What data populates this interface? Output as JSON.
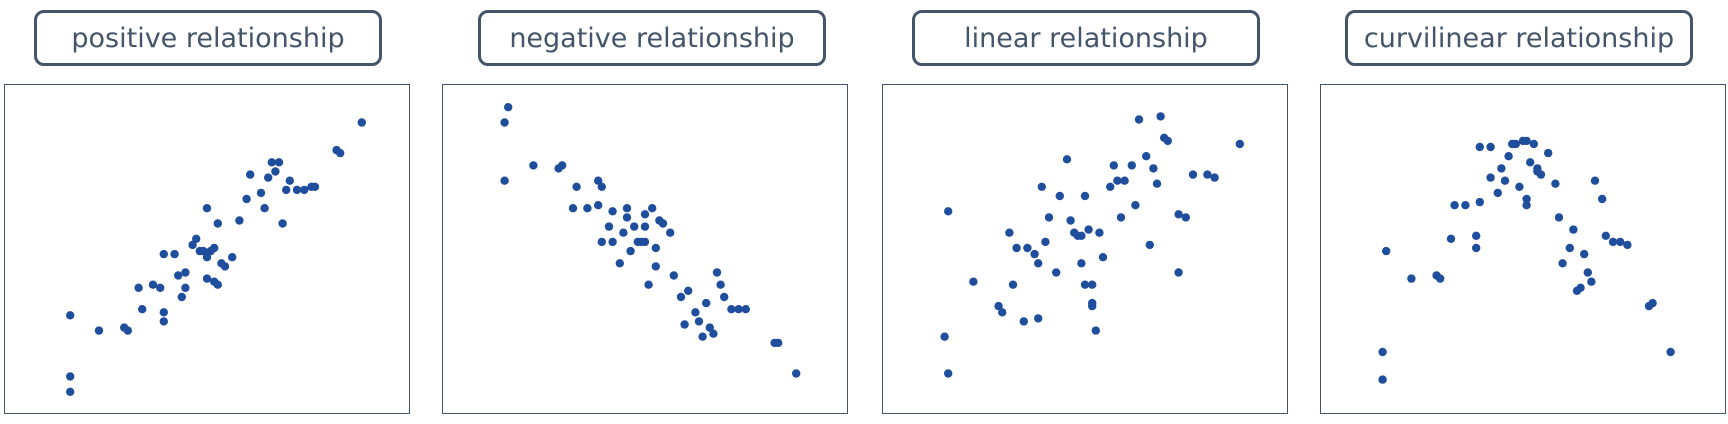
{
  "colors": {
    "accent": "#44546a",
    "point": "#1f4e9c"
  },
  "chart_data": [
    {
      "type": "scatter",
      "title": "positive relationship",
      "xlim": [
        0,
        100
      ],
      "ylim": [
        0,
        100
      ],
      "points": [
        [
          12,
          3
        ],
        [
          12,
          8
        ],
        [
          12,
          28
        ],
        [
          20,
          23
        ],
        [
          27,
          24
        ],
        [
          28,
          23
        ],
        [
          31,
          37
        ],
        [
          35,
          38
        ],
        [
          37,
          37
        ],
        [
          32,
          30
        ],
        [
          38,
          26
        ],
        [
          38,
          29
        ],
        [
          38,
          48
        ],
        [
          41,
          48
        ],
        [
          42,
          41
        ],
        [
          43,
          34
        ],
        [
          44,
          42
        ],
        [
          44,
          37
        ],
        [
          46,
          51
        ],
        [
          47,
          53
        ],
        [
          48,
          49
        ],
        [
          49,
          49
        ],
        [
          50,
          40
        ],
        [
          50,
          47
        ],
        [
          51,
          49
        ],
        [
          50,
          63
        ],
        [
          52,
          50
        ],
        [
          52,
          39
        ],
        [
          53,
          38
        ],
        [
          53,
          58
        ],
        [
          54,
          45
        ],
        [
          55,
          44
        ],
        [
          57,
          47
        ],
        [
          59,
          59
        ],
        [
          61,
          66
        ],
        [
          62,
          74
        ],
        [
          65,
          68
        ],
        [
          66,
          63
        ],
        [
          67,
          73
        ],
        [
          68,
          78
        ],
        [
          69,
          75
        ],
        [
          70,
          78
        ],
        [
          71,
          58
        ],
        [
          72,
          69
        ],
        [
          73,
          72
        ],
        [
          75,
          69
        ],
        [
          77,
          69
        ],
        [
          79,
          70
        ],
        [
          80,
          70
        ],
        [
          86,
          82
        ],
        [
          87,
          81
        ],
        [
          93,
          91
        ]
      ]
    },
    {
      "type": "scatter",
      "title": "negative relationship",
      "xlim": [
        0,
        100
      ],
      "ylim": [
        0,
        100
      ],
      "points": [
        [
          11,
          91
        ],
        [
          11,
          72
        ],
        [
          12,
          96
        ],
        [
          19,
          77
        ],
        [
          26,
          76
        ],
        [
          27,
          77
        ],
        [
          31,
          70
        ],
        [
          30,
          63
        ],
        [
          34,
          63
        ],
        [
          37,
          64
        ],
        [
          37,
          72
        ],
        [
          38,
          70
        ],
        [
          38,
          52
        ],
        [
          40,
          57
        ],
        [
          41,
          52
        ],
        [
          41,
          62
        ],
        [
          43,
          45
        ],
        [
          44,
          55
        ],
        [
          45,
          60
        ],
        [
          45,
          63
        ],
        [
          46,
          49
        ],
        [
          47,
          57
        ],
        [
          48,
          52
        ],
        [
          49,
          52
        ],
        [
          50,
          57
        ],
        [
          50,
          61
        ],
        [
          50,
          52
        ],
        [
          51,
          38
        ],
        [
          52,
          63
        ],
        [
          53,
          44
        ],
        [
          53,
          50
        ],
        [
          54,
          59
        ],
        [
          55,
          58
        ],
        [
          57,
          55
        ],
        [
          58,
          41
        ],
        [
          60,
          34
        ],
        [
          61,
          25
        ],
        [
          62,
          36
        ],
        [
          64,
          29
        ],
        [
          65,
          26
        ],
        [
          66,
          21
        ],
        [
          67,
          32
        ],
        [
          68,
          24
        ],
        [
          69,
          22
        ],
        [
          70,
          42
        ],
        [
          71,
          38
        ],
        [
          72,
          34
        ],
        [
          74,
          30
        ],
        [
          76,
          30
        ],
        [
          78,
          30
        ],
        [
          86,
          19
        ],
        [
          87,
          19
        ],
        [
          92,
          9
        ]
      ]
    },
    {
      "type": "scatter",
      "title": "linear relationship",
      "xlim": [
        0,
        100
      ],
      "ylim": [
        0,
        100
      ],
      "points": [
        [
          11,
          21
        ],
        [
          12,
          9
        ],
        [
          12,
          62
        ],
        [
          19,
          39
        ],
        [
          26,
          31
        ],
        [
          27,
          29
        ],
        [
          29,
          55
        ],
        [
          30,
          38
        ],
        [
          31,
          50
        ],
        [
          33,
          26
        ],
        [
          34,
          50
        ],
        [
          36,
          48
        ],
        [
          37,
          27
        ],
        [
          37,
          45
        ],
        [
          38,
          70
        ],
        [
          39,
          52
        ],
        [
          40,
          60
        ],
        [
          42,
          42
        ],
        [
          43,
          67
        ],
        [
          45,
          79
        ],
        [
          46,
          59
        ],
        [
          47,
          55
        ],
        [
          48,
          54
        ],
        [
          49,
          54
        ],
        [
          49,
          45
        ],
        [
          50,
          38
        ],
        [
          50,
          67
        ],
        [
          51,
          56
        ],
        [
          52,
          38
        ],
        [
          52,
          31
        ],
        [
          52,
          32
        ],
        [
          53,
          23
        ],
        [
          54,
          55
        ],
        [
          55,
          47
        ],
        [
          57,
          70
        ],
        [
          58,
          77
        ],
        [
          59,
          72
        ],
        [
          60,
          60
        ],
        [
          61,
          72
        ],
        [
          63,
          77
        ],
        [
          64,
          64
        ],
        [
          65,
          92
        ],
        [
          67,
          80
        ],
        [
          68,
          51
        ],
        [
          69,
          76
        ],
        [
          70,
          71
        ],
        [
          71,
          93
        ],
        [
          72,
          86
        ],
        [
          73,
          85
        ],
        [
          76,
          42
        ],
        [
          76,
          61
        ],
        [
          78,
          60
        ],
        [
          80,
          74
        ],
        [
          84,
          74
        ],
        [
          86,
          73
        ],
        [
          93,
          84
        ]
      ]
    },
    {
      "type": "scatter",
      "title": "curvilinear relationship",
      "xlim": [
        0,
        100
      ],
      "ylim": [
        0,
        100
      ],
      "points": [
        [
          11,
          7
        ],
        [
          11,
          16
        ],
        [
          12,
          49
        ],
        [
          19,
          40
        ],
        [
          26,
          41
        ],
        [
          27,
          40
        ],
        [
          31,
          64
        ],
        [
          30,
          53
        ],
        [
          34,
          64
        ],
        [
          37,
          50
        ],
        [
          37,
          54
        ],
        [
          38,
          65
        ],
        [
          38,
          83
        ],
        [
          41,
          83
        ],
        [
          41,
          73
        ],
        [
          43,
          68
        ],
        [
          44,
          76
        ],
        [
          45,
          72
        ],
        [
          46,
          80
        ],
        [
          47,
          84
        ],
        [
          48,
          84
        ],
        [
          49,
          70
        ],
        [
          50,
          85
        ],
        [
          51,
          66
        ],
        [
          51,
          64
        ],
        [
          51,
          85
        ],
        [
          52,
          78
        ],
        [
          53,
          84
        ],
        [
          54,
          75
        ],
        [
          54,
          76
        ],
        [
          55,
          74
        ],
        [
          57,
          81
        ],
        [
          59,
          71
        ],
        [
          60,
          60
        ],
        [
          61,
          45
        ],
        [
          63,
          50
        ],
        [
          64,
          56
        ],
        [
          65,
          36
        ],
        [
          66,
          37
        ],
        [
          67,
          48
        ],
        [
          68,
          42
        ],
        [
          69,
          39
        ],
        [
          70,
          72
        ],
        [
          72,
          66
        ],
        [
          73,
          54
        ],
        [
          75,
          52
        ],
        [
          77,
          52
        ],
        [
          79,
          51
        ],
        [
          85,
          31
        ],
        [
          86,
          32
        ],
        [
          91,
          16
        ]
      ]
    }
  ]
}
